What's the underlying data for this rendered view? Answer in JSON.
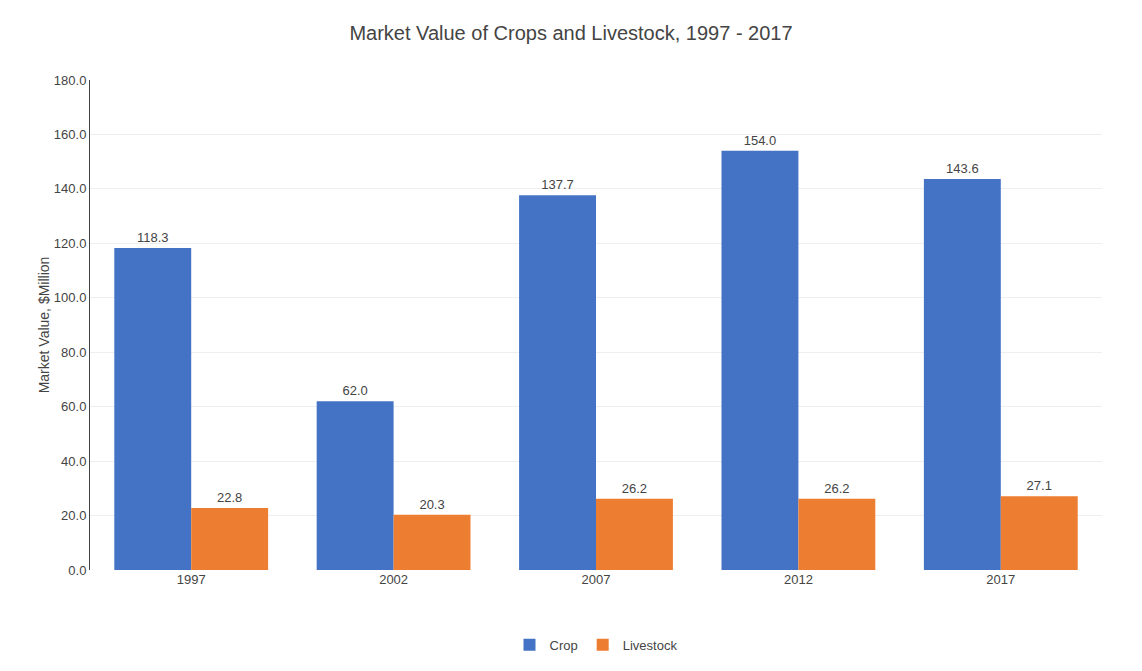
{
  "chart_data": {
    "type": "bar",
    "title": "Market Value of Crops and Livestock, 1997 - 2017",
    "ylabel": "Market Value, $Million",
    "categories": [
      "1997",
      "2002",
      "2007",
      "2012",
      "2017"
    ],
    "series": [
      {
        "name": "Crop",
        "color": "#4472C4",
        "values": [
          118.3,
          62.0,
          137.7,
          154.0,
          143.6
        ],
        "value_labels": [
          "118.3",
          "62.0",
          "137.7",
          "154.0",
          "143.6"
        ]
      },
      {
        "name": "Livestock",
        "color": "#ED7D31",
        "values": [
          22.8,
          20.3,
          26.2,
          26.2,
          27.1
        ],
        "value_labels": [
          "22.8",
          "20.3",
          "26.2",
          "26.2",
          "27.1"
        ]
      }
    ],
    "ylim": [
      0,
      180
    ],
    "yticks": [
      {
        "value": 0,
        "label": "0.0"
      },
      {
        "value": 20,
        "label": "20.0"
      },
      {
        "value": 40,
        "label": "40.0"
      },
      {
        "value": 60,
        "label": "60.0"
      },
      {
        "value": 80,
        "label": "80.0"
      },
      {
        "value": 100,
        "label": "100.0"
      },
      {
        "value": 120,
        "label": "120.0"
      },
      {
        "value": 140,
        "label": "140.0"
      },
      {
        "value": 160,
        "label": "160.0"
      },
      {
        "value": 180,
        "label": "180.0"
      }
    ],
    "grid": true,
    "legend": "bottom",
    "data_labels": true
  }
}
